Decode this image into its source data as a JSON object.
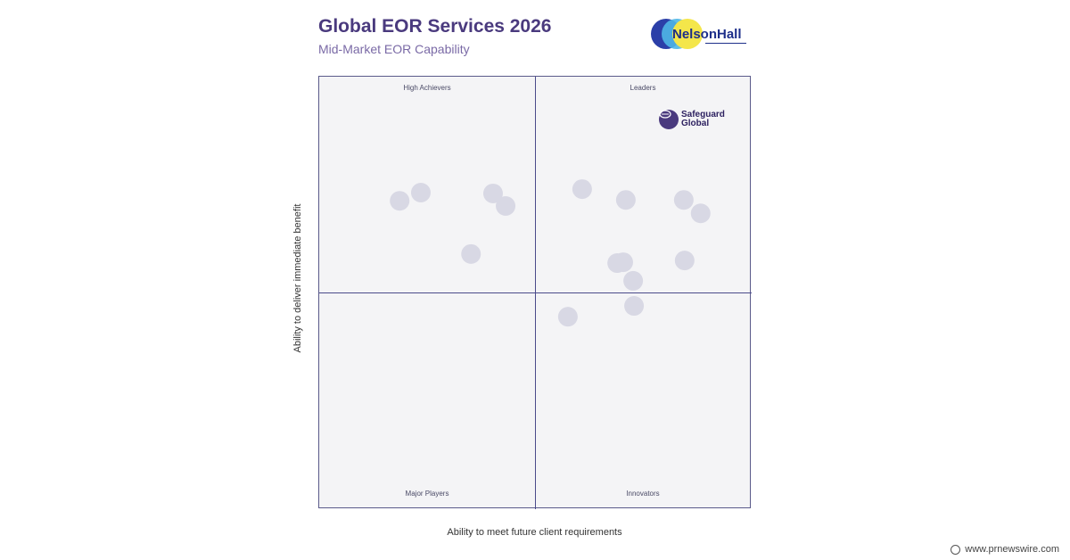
{
  "header": {
    "title": "Global EOR Services 2026",
    "subtitle": "Mid-Market EOR Capability",
    "logo_text": "NelsonHall"
  },
  "chart_data": {
    "type": "scatter",
    "title": "Global EOR Services 2026",
    "subtitle": "Mid-Market EOR Capability",
    "xlabel": "Ability to meet future client requirements",
    "ylabel": "Ability to deliver immediate benefit",
    "xlim": [
      0,
      100
    ],
    "ylim": [
      0,
      100
    ],
    "grid": false,
    "quadrants": {
      "top_left": "High Achievers",
      "top_right": "Leaders",
      "bottom_left": "Major Players",
      "bottom_right": "Innovators"
    },
    "highlight": {
      "name_line1": "Safeguard",
      "name_line2": "Global",
      "x": 84,
      "y": 90
    },
    "points": [
      {
        "x": 18.6,
        "y": 71.3
      },
      {
        "x": 23.5,
        "y": 73.2
      },
      {
        "x": 40.2,
        "y": 73.0
      },
      {
        "x": 43.1,
        "y": 70.1
      },
      {
        "x": 35.1,
        "y": 59.0
      },
      {
        "x": 60.8,
        "y": 74.0
      },
      {
        "x": 70.9,
        "y": 71.5
      },
      {
        "x": 84.3,
        "y": 71.5
      },
      {
        "x": 88.2,
        "y": 68.4
      },
      {
        "x": 68.9,
        "y": 56.9
      },
      {
        "x": 70.3,
        "y": 57.1
      },
      {
        "x": 84.5,
        "y": 57.5
      },
      {
        "x": 72.6,
        "y": 52.8
      },
      {
        "x": 72.8,
        "y": 47.0
      },
      {
        "x": 57.5,
        "y": 44.5
      }
    ],
    "colors": {
      "point": "#d8d8e4",
      "divider": "#4a4a8a",
      "highlight": "#4a3a7e"
    }
  },
  "footer": {
    "source": "www.prnewswire.com"
  }
}
